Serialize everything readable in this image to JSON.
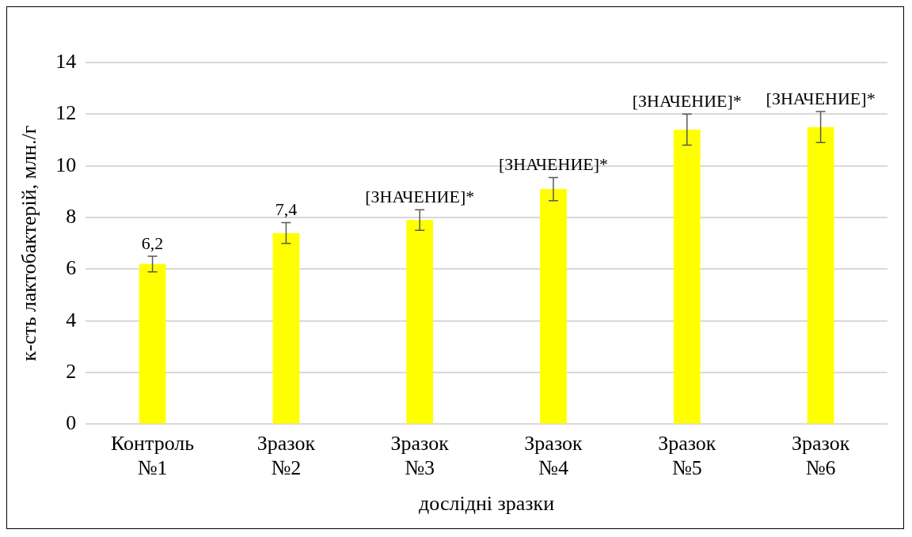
{
  "chart_data": {
    "type": "bar",
    "xlabel": "дослідні зразки",
    "ylabel": "к-сть лактобактерій, млн./г",
    "categories": [
      "Контроль №1",
      "Зразок №2",
      "Зразок №3",
      "Зразок №4",
      "Зразок №5",
      "Зразок №6"
    ],
    "values": [
      6.2,
      7.4,
      7.9,
      9.1,
      11.4,
      11.5
    ],
    "errors": [
      0.3,
      0.4,
      0.4,
      0.45,
      0.6,
      0.6
    ],
    "value_labels": [
      "6,2",
      "7,4",
      "[ЗНАЧЕНИЕ]*",
      "[ЗНАЧЕНИЕ]*",
      "[ЗНАЧЕНИЕ]*",
      "[ЗНАЧЕНИЕ]*"
    ],
    "color": "#ffff00",
    "ylim": [
      0,
      14
    ],
    "yticks": [
      0,
      2,
      4,
      6,
      8,
      10,
      12,
      14
    ],
    "grid": "y",
    "legend": false
  }
}
